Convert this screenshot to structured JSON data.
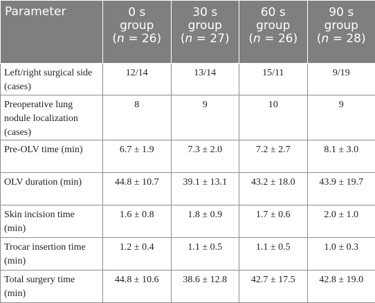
{
  "table": {
    "header": [
      {
        "line1": "Parameter",
        "line2": "",
        "line3": ""
      },
      {
        "line1": "0 s",
        "line2": "group",
        "line3": "(n = 26)"
      },
      {
        "line1": "30 s",
        "line2": "group",
        "line3": "(n = 27)"
      },
      {
        "line1": "60 s",
        "line2": "group",
        "line3": "(n = 26)"
      },
      {
        "line1": "90 s",
        "line2": "group",
        "line3": "(n = 28)"
      }
    ],
    "rows": [
      {
        "param": "Left/right surgical side (cases)",
        "values": [
          "12/14",
          "13/14",
          "15/11",
          "9/19"
        ]
      },
      {
        "param": "Preoperative lung nodule localization (cases)",
        "values": [
          "8",
          "9",
          "10",
          "9"
        ]
      },
      {
        "param": "Pre-OLV time (min)",
        "values": [
          "6.7 ± 1.9",
          "7.3 ± 2.0",
          "7.2 ± 2.7",
          "8.1 ± 3.0"
        ]
      },
      {
        "param": "OLV duration (min)",
        "values": [
          "44.8 ± 10.7",
          "39.1 ± 13.1",
          "43.2 ± 18.0",
          "43.9 ± 19.7"
        ]
      },
      {
        "param": "Skin incision time (min)",
        "values": [
          "1.6 ± 0.8",
          "1.8 ± 0.9",
          "1.7 ± 0.6",
          "2.0 ± 1.0"
        ]
      },
      {
        "param": "Trocar insertion time (min)",
        "values": [
          "1.2 ± 0.4",
          "1.1 ± 0.5",
          "1.1 ± 0.5",
          "1.0 ± 0.3"
        ]
      },
      {
        "param": "Total surgery time (min)",
        "values": [
          "44.8 ± 10.6",
          "38.6 ± 12.8",
          "42.7 ± 17.5",
          "42.8 ± 19.0"
        ]
      }
    ]
  },
  "colors": {
    "header_bg": "#7f7f7f",
    "header_text": "#ffffff",
    "border": "#8c8c8c",
    "body_text": "#222222"
  }
}
